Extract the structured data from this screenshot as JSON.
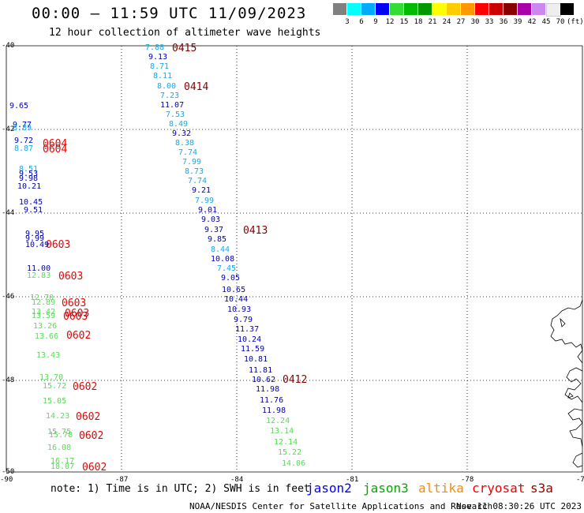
{
  "title": "00:00 – 11:59 UTC 11/09/2023",
  "subtitle": "12 hour collection of altimeter wave heights",
  "colorbar": {
    "colors": [
      "#808080",
      "#00ffff",
      "#00aaff",
      "#0000ff",
      "#33dd33",
      "#00bb00",
      "#009900",
      "#ffff00",
      "#ffcc00",
      "#ff9900",
      "#ff0000",
      "#cc0000",
      "#880000",
      "#aa00aa",
      "#cc88ee",
      "#eeeeee",
      "#000000"
    ],
    "ticks": [
      "3",
      "6",
      "9",
      "12",
      "15",
      "18",
      "21",
      "24",
      "27",
      "30",
      "33",
      "36",
      "39",
      "42",
      "45",
      "70",
      "(ft)"
    ]
  },
  "axes": {
    "lat_labels": [
      "-40",
      "-42",
      "-44",
      "-46",
      "-48",
      "-50"
    ],
    "lon_labels": [
      "-90",
      "-87",
      "-84",
      "-81",
      "-78",
      "-75"
    ]
  },
  "note": "note: 1) Time is in UTC; 2) SWH is in feet",
  "satellites": [
    {
      "name": "jason2",
      "color": "#0000ee"
    },
    {
      "name": "jason3",
      "color": "#00aa00"
    },
    {
      "name": "altika",
      "color": "#ff8800"
    },
    {
      "name": "cryosat",
      "color": "#ee0000"
    },
    {
      "name": "s3a",
      "color": "#990000"
    }
  ],
  "credit": "NOAA/NESDIS Center for Satellite Applications and Research",
  "stamp": "Nov 11 08:30:26 UTC 2023",
  "colors": {
    "dark_blue": "#0000bb",
    "light_blue": "#11aaee",
    "light_green": "#55dd55",
    "red": "#ee0000",
    "dark_red": "#880000"
  },
  "observations": [
    {
      "v": "7.88",
      "c": "light_blue"
    },
    {
      "v": "9.13",
      "c": "dark_blue"
    },
    {
      "v": "8.71",
      "c": "light_blue"
    },
    {
      "v": "8.11",
      "c": "light_blue"
    },
    {
      "v": "8.00",
      "c": "light_blue"
    },
    {
      "v": "7.23",
      "c": "light_blue"
    },
    {
      "v": "11.07",
      "c": "dark_blue"
    },
    {
      "v": "7.53",
      "c": "light_blue"
    },
    {
      "v": "8.49",
      "c": "light_blue"
    },
    {
      "v": "9.32",
      "c": "dark_blue"
    },
    {
      "v": "8.38",
      "c": "light_blue"
    },
    {
      "v": "7.74",
      "c": "light_blue"
    },
    {
      "v": "7.99",
      "c": "light_blue"
    },
    {
      "v": "8.73",
      "c": "light_blue"
    },
    {
      "v": "7.74",
      "c": "light_blue"
    },
    {
      "v": "9.21",
      "c": "dark_blue"
    },
    {
      "v": "7.99",
      "c": "light_blue"
    },
    {
      "v": "9.01",
      "c": "dark_blue"
    },
    {
      "v": "9.03",
      "c": "dark_blue"
    },
    {
      "v": "9.37",
      "c": "dark_blue"
    },
    {
      "v": "9.85",
      "c": "dark_blue"
    },
    {
      "v": "8.44",
      "c": "light_blue"
    },
    {
      "v": "10.08",
      "c": "dark_blue"
    },
    {
      "v": "7.45",
      "c": "light_blue"
    },
    {
      "v": "9.05",
      "c": "dark_blue"
    },
    {
      "v": "10.65",
      "c": "dark_blue"
    },
    {
      "v": "10.44",
      "c": "dark_blue"
    },
    {
      "v": "10.93",
      "c": "dark_blue"
    },
    {
      "v": "9.79",
      "c": "dark_blue"
    },
    {
      "v": "11.37",
      "c": "dark_blue"
    },
    {
      "v": "10.24",
      "c": "dark_blue"
    },
    {
      "v": "11.59",
      "c": "dark_blue"
    },
    {
      "v": "10.81",
      "c": "dark_blue"
    },
    {
      "v": "11.81",
      "c": "dark_blue"
    },
    {
      "v": "10.62",
      "c": "dark_blue"
    },
    {
      "v": "11.98",
      "c": "dark_blue"
    },
    {
      "v": "11.76",
      "c": "dark_blue"
    },
    {
      "v": "11.98",
      "c": "dark_blue"
    },
    {
      "v": "12.24",
      "c": "light_green"
    },
    {
      "v": "13.14",
      "c": "light_green"
    },
    {
      "v": "12.14",
      "c": "light_green"
    },
    {
      "v": "15.22",
      "c": "light_green"
    },
    {
      "v": "14.06",
      "c": "light_green"
    },
    {
      "v": "9.65",
      "c": "dark_blue"
    },
    {
      "v": "9.77",
      "c": "dark_blue"
    },
    {
      "v": "8.89",
      "c": "light_blue"
    },
    {
      "v": "9.72",
      "c": "dark_blue"
    },
    {
      "v": "8.87",
      "c": "light_blue"
    },
    {
      "v": "8.51",
      "c": "light_blue"
    },
    {
      "v": "9.53",
      "c": "dark_blue"
    },
    {
      "v": "9.98",
      "c": "dark_blue"
    },
    {
      "v": "10.21",
      "c": "dark_blue"
    },
    {
      "v": "10.45",
      "c": "dark_blue"
    },
    {
      "v": "9.51",
      "c": "dark_blue"
    },
    {
      "v": "9.95",
      "c": "dark_blue"
    },
    {
      "v": "9.99",
      "c": "dark_blue"
    },
    {
      "v": "10.49",
      "c": "dark_blue"
    },
    {
      "v": "11.00",
      "c": "dark_blue"
    },
    {
      "v": "12.83",
      "c": "light_green"
    },
    {
      "v": "12.70",
      "c": "light_green"
    },
    {
      "v": "12.89",
      "c": "light_green"
    },
    {
      "v": "13.42",
      "c": "light_green"
    },
    {
      "v": "13.59",
      "c": "light_green"
    },
    {
      "v": "13.26",
      "c": "light_green"
    },
    {
      "v": "13.66",
      "c": "light_green"
    },
    {
      "v": "13.43",
      "c": "light_green"
    },
    {
      "v": "13.70",
      "c": "light_green"
    },
    {
      "v": "15.72",
      "c": "light_green"
    },
    {
      "v": "15.05",
      "c": "light_green"
    },
    {
      "v": "14.23",
      "c": "light_green"
    },
    {
      "v": "15.75",
      "c": "light_green"
    },
    {
      "v": "15.78",
      "c": "light_green"
    },
    {
      "v": "16.08",
      "c": "light_green"
    },
    {
      "v": "16.17",
      "c": "light_green"
    },
    {
      "v": "18.07",
      "c": "light_green"
    }
  ],
  "times": [
    {
      "v": "0415",
      "c": "dark_red"
    },
    {
      "v": "0414",
      "c": "dark_red"
    },
    {
      "v": "0413",
      "c": "dark_red"
    },
    {
      "v": "0412",
      "c": "dark_red"
    },
    {
      "v": "0604",
      "c": "red"
    },
    {
      "v": "0604",
      "c": "red"
    },
    {
      "v": "0603",
      "c": "red"
    },
    {
      "v": "0603",
      "c": "red"
    },
    {
      "v": "0603",
      "c": "red"
    },
    {
      "v": "0603",
      "c": "red"
    },
    {
      "v": "0603",
      "c": "red"
    },
    {
      "v": "0602",
      "c": "red"
    },
    {
      "v": "0602",
      "c": "red"
    },
    {
      "v": "0602",
      "c": "red"
    },
    {
      "v": "0602",
      "c": "red"
    },
    {
      "v": "0602",
      "c": "red"
    }
  ]
}
